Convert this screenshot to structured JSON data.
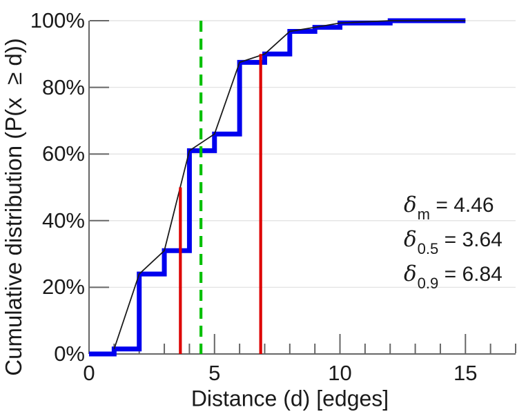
{
  "chart_data": {
    "type": "line",
    "subtype": "cdf-step-with-interpolation",
    "title": "",
    "xlabel": "Distance (d) [edges]",
    "ylabel": "Cumulative distribution (P(x  ≥ d))",
    "xlim": [
      0,
      17
    ],
    "ylim": [
      0,
      100
    ],
    "grid": "horizontal-only",
    "legend": "none",
    "x_ticks": {
      "major": [
        {
          "x": 0,
          "label": "0"
        },
        {
          "x": 5,
          "label": "5"
        },
        {
          "x": 10,
          "label": "10"
        },
        {
          "x": 15,
          "label": "15"
        }
      ],
      "minor": [
        1,
        2,
        3,
        4,
        6,
        7,
        8,
        9,
        11,
        12,
        13,
        14,
        16,
        17
      ]
    },
    "y_ticks": [
      {
        "v": 0,
        "label": "0%"
      },
      {
        "v": 20,
        "label": "20%"
      },
      {
        "v": 40,
        "label": "40%"
      },
      {
        "v": 60,
        "label": "60%"
      },
      {
        "v": 80,
        "label": "80%"
      },
      {
        "v": 100,
        "label": "100%"
      }
    ],
    "colors": {
      "step": "#0000ee",
      "polyline": "#1a1a1a",
      "quantile": "#dd0000",
      "mean": "#00c000",
      "axis": "#666666",
      "grid": "#e3e3e3",
      "text": "#1a1a1a"
    },
    "series": [
      {
        "name": "cumulative-distribution-step",
        "style": "step",
        "start": [
          0,
          0
        ],
        "points_x_pct": [
          [
            1,
            1.5
          ],
          [
            2,
            24
          ],
          [
            3,
            31
          ],
          [
            4,
            61
          ],
          [
            5,
            66
          ],
          [
            6,
            87.5
          ],
          [
            7,
            90
          ],
          [
            8,
            96.8
          ],
          [
            9,
            98
          ],
          [
            10,
            99.3
          ],
          [
            12,
            100
          ],
          [
            15,
            100
          ]
        ]
      },
      {
        "name": "interpolated-cdf-line",
        "style": "polyline",
        "points_x_pct": [
          [
            1,
            1.5
          ],
          [
            2,
            24
          ],
          [
            3,
            31
          ],
          [
            4,
            61
          ],
          [
            5,
            66
          ],
          [
            6,
            87.5
          ],
          [
            7,
            90
          ],
          [
            8,
            96.8
          ],
          [
            9,
            98
          ],
          [
            10,
            99.3
          ],
          [
            12,
            100
          ],
          [
            15,
            100
          ]
        ]
      }
    ],
    "vlines": [
      {
        "name": "delta-0.5-marker",
        "x": 3.64,
        "top_pct": 50,
        "color_key": "quantile",
        "style": "solid"
      },
      {
        "name": "delta-0.9-marker",
        "x": 6.84,
        "top_pct": 90,
        "color_key": "quantile",
        "style": "solid"
      },
      {
        "name": "delta-mean-marker",
        "x": 4.46,
        "top_pct": 100,
        "color_key": "mean",
        "style": "dashed"
      }
    ],
    "annotations": [
      {
        "symbol": "δ",
        "subscript": "m",
        "text": " = 4.46"
      },
      {
        "symbol": "δ",
        "subscript": "0.5",
        "text": " = 3.64"
      },
      {
        "symbol": "δ",
        "subscript": "0.9",
        "text": " = 6.84"
      }
    ]
  }
}
